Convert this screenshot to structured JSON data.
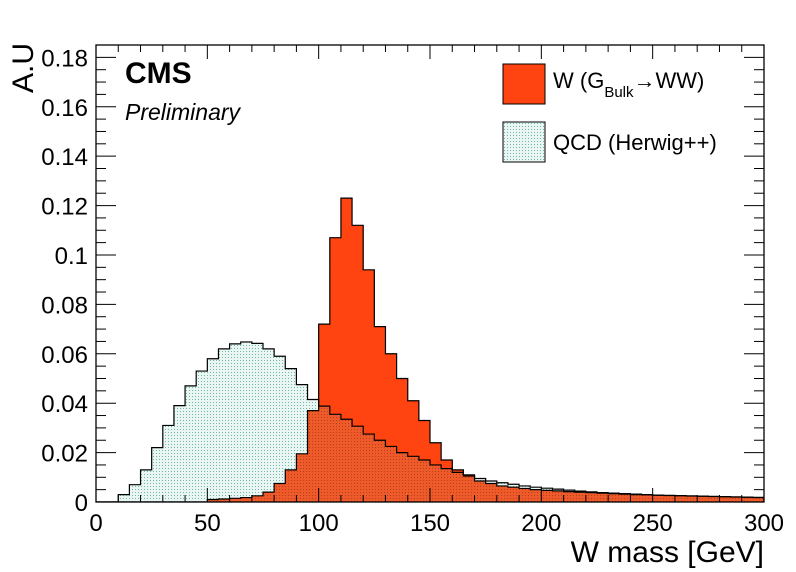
{
  "chart_data": {
    "type": "histogram",
    "title": "",
    "xlabel": "W mass [GeV]",
    "ylabel": "A.U",
    "xlim": [
      0,
      300
    ],
    "ylim": [
      0,
      0.185
    ],
    "bin_width": 5,
    "x_ticks": [
      "0",
      "50",
      "100",
      "150",
      "200",
      "250",
      "300"
    ],
    "y_ticks": [
      "0",
      "0.02",
      "0.04",
      "0.06",
      "0.08",
      "0.1",
      "0.12",
      "0.14",
      "0.16",
      "0.18"
    ],
    "experiment_label": "CMS",
    "status_label": "Preliminary",
    "legend_position": "top-right",
    "legend": [
      {
        "text_main": "W (G",
        "text_sub": "Bulk",
        "text_arrow": "→",
        "text_after": "WW)"
      },
      {
        "text": "QCD (Herwig++)"
      }
    ],
    "series": [
      {
        "name": "W (G_Bulk→WW)",
        "color": "#ff4411",
        "bin_edges_start": 0,
        "values": [
          0,
          0,
          0,
          0,
          0,
          0,
          0,
          0,
          0,
          0,
          0.001,
          0.0012,
          0.0015,
          0.0018,
          0.0025,
          0.004,
          0.0075,
          0.013,
          0.0195,
          0.037,
          0.072,
          0.107,
          0.123,
          0.112,
          0.094,
          0.071,
          0.06,
          0.05,
          0.041,
          0.033,
          0.024,
          0.017,
          0.013,
          0.011,
          0.0085,
          0.0075,
          0.0065,
          0.006,
          0.0055,
          0.005,
          0.0047,
          0.0045,
          0.0042,
          0.004,
          0.0038,
          0.0036,
          0.0034,
          0.0032,
          0.003,
          0.0029,
          0.0027,
          0.0026,
          0.0025,
          0.0024,
          0.0023,
          0.0022,
          0.0021,
          0.002,
          0.0019,
          0.0018
        ]
      },
      {
        "name": "QCD (Herwig++)",
        "color": "#e8f7f2",
        "bin_edges_start": 0,
        "values": [
          0,
          0,
          0.003,
          0.007,
          0.013,
          0.022,
          0.031,
          0.039,
          0.047,
          0.053,
          0.058,
          0.062,
          0.064,
          0.0648,
          0.0642,
          0.062,
          0.059,
          0.054,
          0.0475,
          0.0415,
          0.0388,
          0.0355,
          0.0335,
          0.0307,
          0.0275,
          0.025,
          0.0225,
          0.02,
          0.0185,
          0.017,
          0.015,
          0.0135,
          0.012,
          0.0105,
          0.0095,
          0.0085,
          0.0078,
          0.0072,
          0.0065,
          0.006,
          0.0056,
          0.0052,
          0.0048,
          0.0044,
          0.0041,
          0.0038,
          0.0036,
          0.0034,
          0.0032,
          0.003,
          0.0028,
          0.0027,
          0.0026,
          0.0025,
          0.0024,
          0.0023,
          0.0022,
          0.0021,
          0.002,
          0.0019
        ]
      }
    ]
  }
}
